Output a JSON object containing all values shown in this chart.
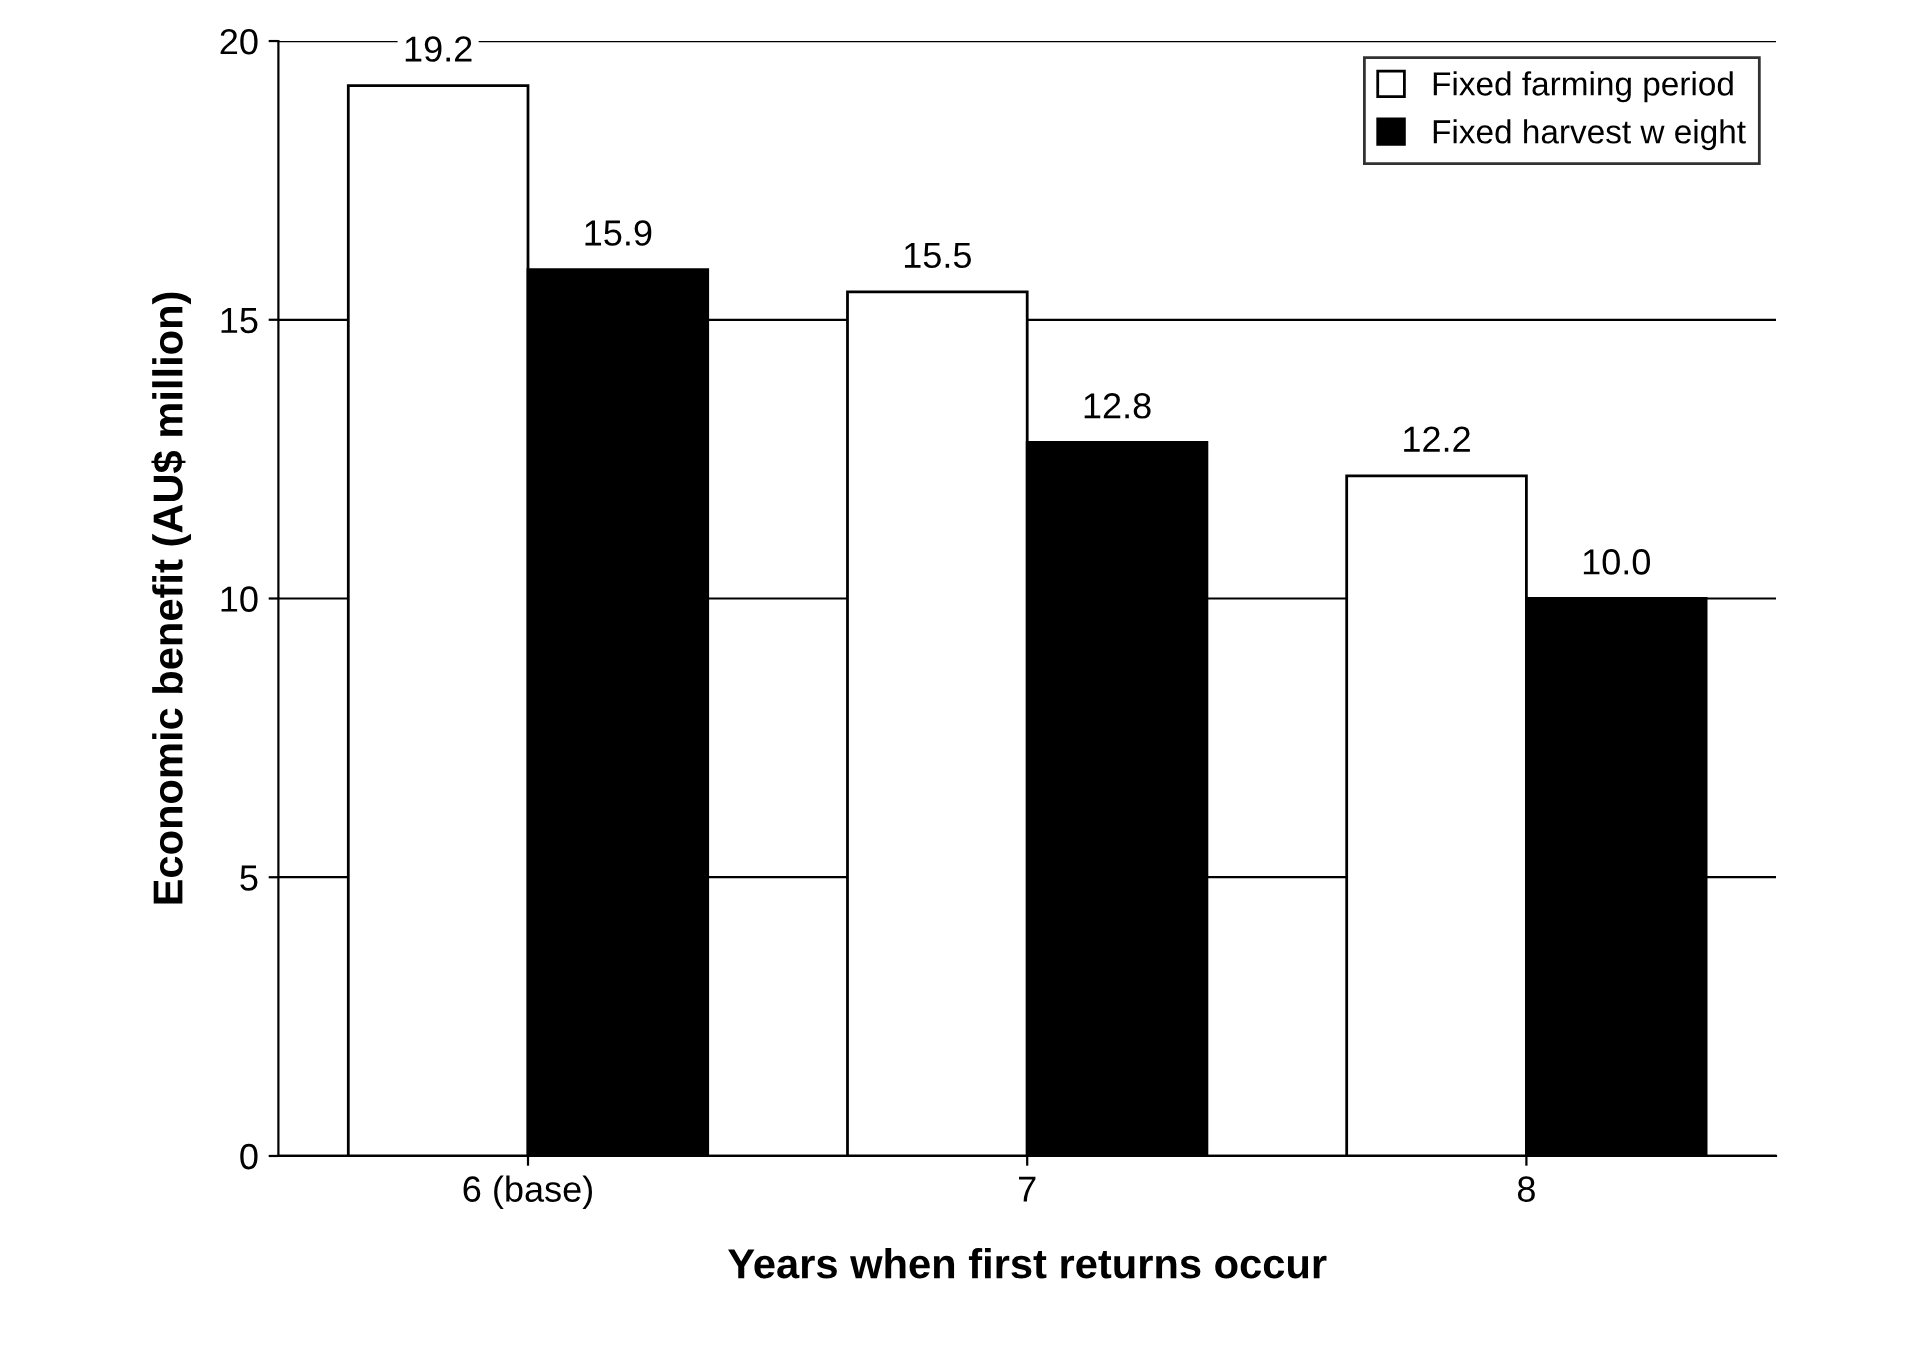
{
  "chart_data": {
    "type": "bar",
    "xlabel": "Years when first returns occur",
    "ylabel": "Economic benefit (AU$ million)",
    "categories": [
      "6 (base)",
      "7",
      "8"
    ],
    "series": [
      {
        "name": "Fixed farming period",
        "color": "#ffffff",
        "values": [
          19.2,
          15.5,
          12.2
        ],
        "value_labels": [
          "19.2",
          "15.5",
          "12.2"
        ]
      },
      {
        "name": "Fixed harvest w eight",
        "color": "#000000",
        "values": [
          15.9,
          12.8,
          10.0
        ],
        "value_labels": [
          "15.9",
          "12.8",
          "10.0"
        ]
      }
    ],
    "ylim": [
      0,
      20
    ],
    "yticks": [
      0,
      5,
      10,
      15,
      20
    ],
    "grid": "y",
    "legend": "top right"
  }
}
